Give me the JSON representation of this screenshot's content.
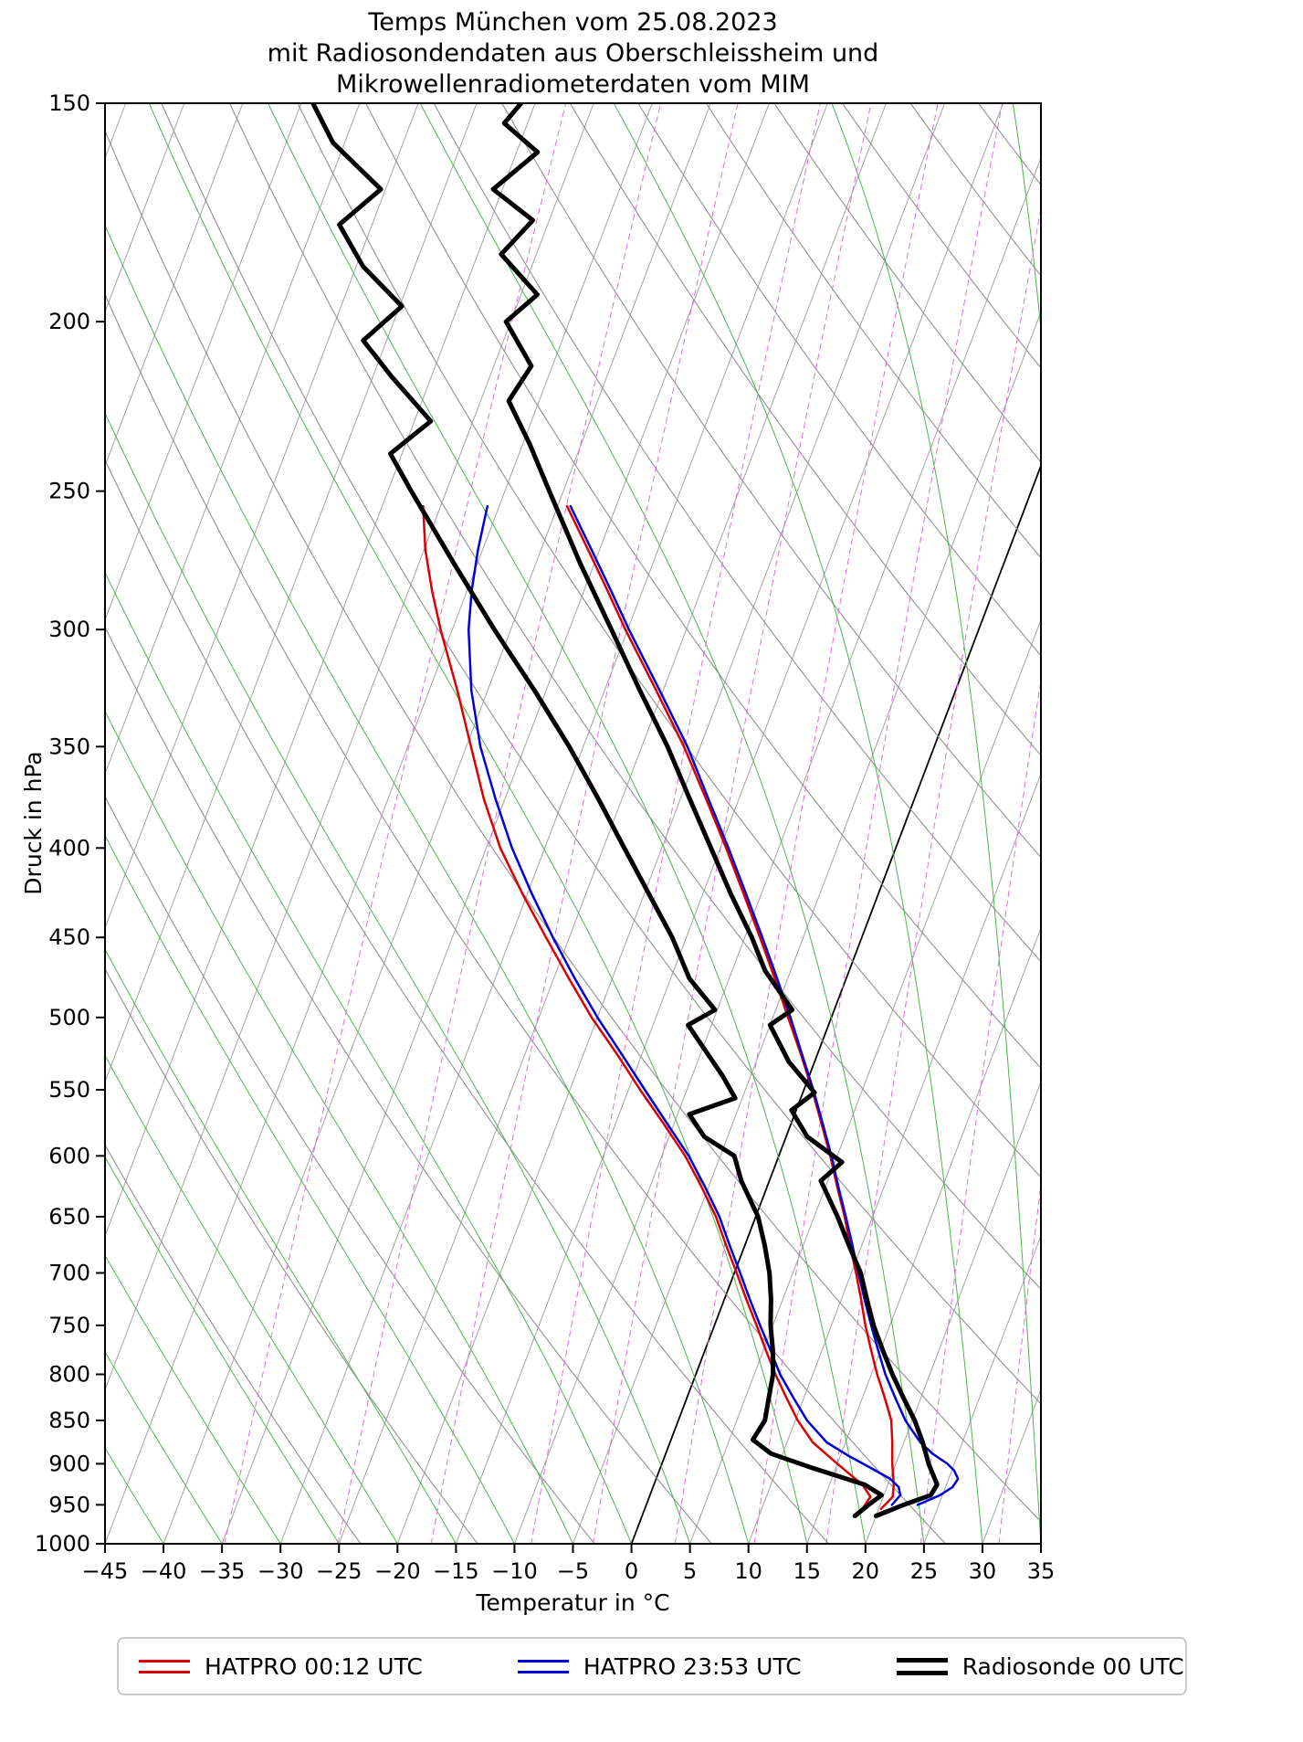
{
  "title": {
    "line1": "Temps München vom 25.08.2023",
    "line2": "mit Radiosondendaten aus Oberschleissheim und",
    "line3": "Mikrowellenradiometerdaten vom MIM"
  },
  "chart_data": {
    "type": "line",
    "variant": "skewT-logp",
    "xlabel": "Temperatur in °C",
    "ylabel": "Druck in hPa",
    "x_range": [
      -45,
      35
    ],
    "p_range": [
      150,
      1000
    ],
    "skew": 0.38,
    "x_ticks": [
      -45,
      -40,
      -35,
      -30,
      -25,
      -20,
      -15,
      -10,
      -5,
      0,
      5,
      10,
      15,
      20,
      25,
      30,
      35
    ],
    "x_tick_labels": [
      "−45",
      "−40",
      "−35",
      "−30",
      "−25",
      "−20",
      "−15",
      "−10",
      "−5",
      "0",
      "5",
      "10",
      "15",
      "20",
      "25",
      "30",
      "35"
    ],
    "y_ticks": [
      150,
      200,
      250,
      300,
      350,
      400,
      450,
      500,
      550,
      600,
      650,
      700,
      750,
      800,
      850,
      900,
      950,
      1000
    ],
    "grid": {
      "isotherms": {
        "min": -110,
        "max": 40,
        "step": 5,
        "color": "#a3a3a3",
        "zero_highlight": 0,
        "zero_color": "#000000"
      },
      "dry_adiabats": {
        "theta_min": 250,
        "theta_max": 450,
        "step": 10,
        "color": "#8f8f8f"
      },
      "moist_adiabats": {
        "t_min": -40,
        "t_max": 40,
        "step": 5,
        "color": "#4bb54b"
      },
      "mixing_ratio": {
        "values": [
          0.2,
          0.5,
          1,
          2,
          3,
          5,
          8,
          12,
          20,
          30
        ],
        "color": "#e36ae3"
      }
    },
    "series": [
      {
        "name": "HATPRO 00:12 UTC",
        "color": "#dd0000",
        "width": 2.5,
        "temperature_pT": [
          [
            955,
            20.2
          ],
          [
            940,
            20.8
          ],
          [
            925,
            20.5
          ],
          [
            900,
            19.7
          ],
          [
            875,
            19.0
          ],
          [
            850,
            18.2
          ],
          [
            825,
            16.9
          ],
          [
            800,
            15.5
          ],
          [
            775,
            14.2
          ],
          [
            750,
            12.9
          ],
          [
            725,
            11.7
          ],
          [
            700,
            10.4
          ],
          [
            675,
            9.0
          ],
          [
            650,
            7.6
          ],
          [
            625,
            6.0
          ],
          [
            600,
            4.4
          ],
          [
            575,
            2.6
          ],
          [
            550,
            0.7
          ],
          [
            525,
            -1.4
          ],
          [
            500,
            -3.7
          ],
          [
            475,
            -6.1
          ],
          [
            450,
            -8.7
          ],
          [
            425,
            -11.5
          ],
          [
            400,
            -14.5
          ],
          [
            375,
            -17.8
          ],
          [
            350,
            -21.4
          ],
          [
            325,
            -25.6
          ],
          [
            300,
            -30.2
          ],
          [
            285,
            -33.0
          ],
          [
            270,
            -36.0
          ],
          [
            255,
            -39.2
          ]
        ],
        "dewpoint_pT": [
          [
            955,
            18.6
          ],
          [
            940,
            18.9
          ],
          [
            925,
            17.8
          ],
          [
            900,
            15.0
          ],
          [
            875,
            12.2
          ],
          [
            850,
            10.2
          ],
          [
            825,
            8.5
          ],
          [
            800,
            6.8
          ],
          [
            775,
            5.2
          ],
          [
            750,
            3.6
          ],
          [
            725,
            1.9
          ],
          [
            700,
            0.2
          ],
          [
            675,
            -1.6
          ],
          [
            650,
            -3.4
          ],
          [
            625,
            -5.6
          ],
          [
            600,
            -8.0
          ],
          [
            575,
            -10.9
          ],
          [
            550,
            -14.0
          ],
          [
            525,
            -17.1
          ],
          [
            500,
            -20.5
          ],
          [
            475,
            -23.7
          ],
          [
            450,
            -27.0
          ],
          [
            425,
            -30.4
          ],
          [
            400,
            -33.8
          ],
          [
            375,
            -36.8
          ],
          [
            350,
            -39.6
          ],
          [
            325,
            -42.6
          ],
          [
            300,
            -46.0
          ],
          [
            285,
            -48.0
          ],
          [
            270,
            -49.9
          ],
          [
            255,
            -51.5
          ]
        ]
      },
      {
        "name": "HATPRO 23:53 UTC",
        "color": "#0000dd",
        "width": 2.5,
        "temperature_pT": [
          [
            950,
            23.2
          ],
          [
            938,
            24.8
          ],
          [
            928,
            25.6
          ],
          [
            918,
            25.8
          ],
          [
            908,
            25.2
          ],
          [
            900,
            24.4
          ],
          [
            888,
            22.8
          ],
          [
            875,
            21.4
          ],
          [
            850,
            19.4
          ],
          [
            825,
            17.8
          ],
          [
            800,
            16.2
          ],
          [
            775,
            14.8
          ],
          [
            750,
            13.4
          ],
          [
            725,
            12.0
          ],
          [
            700,
            10.6
          ],
          [
            675,
            9.2
          ],
          [
            650,
            7.7
          ],
          [
            625,
            6.1
          ],
          [
            600,
            4.5
          ],
          [
            575,
            2.7
          ],
          [
            550,
            0.8
          ],
          [
            525,
            -1.3
          ],
          [
            500,
            -3.5
          ],
          [
            475,
            -5.9
          ],
          [
            450,
            -8.5
          ],
          [
            425,
            -11.3
          ],
          [
            400,
            -14.3
          ],
          [
            375,
            -17.6
          ],
          [
            350,
            -21.1
          ],
          [
            325,
            -25.3
          ],
          [
            300,
            -29.9
          ],
          [
            285,
            -32.7
          ],
          [
            270,
            -35.7
          ],
          [
            255,
            -38.9
          ]
        ],
        "dewpoint_pT": [
          [
            950,
            21.0
          ],
          [
            938,
            21.4
          ],
          [
            928,
            21.0
          ],
          [
            918,
            20.0
          ],
          [
            905,
            18.0
          ],
          [
            890,
            15.6
          ],
          [
            875,
            13.4
          ],
          [
            850,
            11.0
          ],
          [
            825,
            9.1
          ],
          [
            800,
            7.2
          ],
          [
            775,
            5.6
          ],
          [
            750,
            3.9
          ],
          [
            725,
            2.2
          ],
          [
            700,
            0.5
          ],
          [
            675,
            -1.3
          ],
          [
            650,
            -3.1
          ],
          [
            625,
            -5.3
          ],
          [
            600,
            -7.7
          ],
          [
            575,
            -10.6
          ],
          [
            550,
            -13.6
          ],
          [
            525,
            -16.7
          ],
          [
            500,
            -20.0
          ],
          [
            475,
            -23.2
          ],
          [
            450,
            -26.4
          ],
          [
            425,
            -29.6
          ],
          [
            400,
            -32.8
          ],
          [
            375,
            -35.8
          ],
          [
            350,
            -38.8
          ],
          [
            325,
            -41.4
          ],
          [
            300,
            -43.6
          ],
          [
            285,
            -44.6
          ],
          [
            270,
            -45.4
          ],
          [
            255,
            -46.0
          ]
        ]
      },
      {
        "name": "Radiosonde 00 UTC",
        "color": "#000000",
        "width": 5,
        "temperature_pT": [
          [
            964,
            20.0
          ],
          [
            950,
            22.0
          ],
          [
            938,
            24.0
          ],
          [
            925,
            24.2
          ],
          [
            900,
            22.8
          ],
          [
            875,
            21.6
          ],
          [
            850,
            20.2
          ],
          [
            825,
            18.5
          ],
          [
            800,
            16.8
          ],
          [
            775,
            15.2
          ],
          [
            750,
            13.6
          ],
          [
            725,
            12.2
          ],
          [
            700,
            10.8
          ],
          [
            675,
            8.9
          ],
          [
            650,
            7.0
          ],
          [
            620,
            4.4
          ],
          [
            605,
            5.6
          ],
          [
            585,
            1.8
          ],
          [
            565,
            -0.4
          ],
          [
            552,
            1.0
          ],
          [
            530,
            -2.2
          ],
          [
            505,
            -5.0
          ],
          [
            495,
            -3.6
          ],
          [
            470,
            -7.2
          ],
          [
            450,
            -9.4
          ],
          [
            425,
            -12.6
          ],
          [
            400,
            -15.8
          ],
          [
            375,
            -19.2
          ],
          [
            350,
            -22.8
          ],
          [
            325,
            -27.0
          ],
          [
            300,
            -31.4
          ],
          [
            275,
            -36.2
          ],
          [
            250,
            -41.2
          ],
          [
            235,
            -44.4
          ],
          [
            222,
            -47.6
          ],
          [
            212,
            -46.8
          ],
          [
            200,
            -50.4
          ],
          [
            193,
            -48.6
          ],
          [
            183,
            -53.0
          ],
          [
            175,
            -51.4
          ],
          [
            168,
            -55.8
          ],
          [
            160,
            -53.2
          ],
          [
            154,
            -57.0
          ],
          [
            150,
            -56.2
          ]
        ],
        "dewpoint_pT": [
          [
            964,
            18.2
          ],
          [
            950,
            19.0
          ],
          [
            938,
            19.8
          ],
          [
            925,
            18.0
          ],
          [
            905,
            13.0
          ],
          [
            888,
            9.0
          ],
          [
            872,
            7.0
          ],
          [
            850,
            7.4
          ],
          [
            825,
            7.0
          ],
          [
            800,
            6.6
          ],
          [
            775,
            5.8
          ],
          [
            750,
            4.8
          ],
          [
            725,
            4.0
          ],
          [
            700,
            3.0
          ],
          [
            675,
            1.7
          ],
          [
            650,
            0.2
          ],
          [
            620,
            -2.4
          ],
          [
            600,
            -3.8
          ],
          [
            585,
            -7.0
          ],
          [
            568,
            -9.0
          ],
          [
            556,
            -5.6
          ],
          [
            540,
            -7.4
          ],
          [
            520,
            -10.0
          ],
          [
            505,
            -12.0
          ],
          [
            495,
            -10.2
          ],
          [
            475,
            -13.4
          ],
          [
            450,
            -16.2
          ],
          [
            425,
            -19.6
          ],
          [
            400,
            -23.2
          ],
          [
            375,
            -27.0
          ],
          [
            350,
            -31.2
          ],
          [
            325,
            -36.0
          ],
          [
            300,
            -41.4
          ],
          [
            275,
            -47.0
          ],
          [
            250,
            -53.0
          ],
          [
            238,
            -56.0
          ],
          [
            228,
            -53.6
          ],
          [
            215,
            -58.4
          ],
          [
            205,
            -62.0
          ],
          [
            196,
            -59.8
          ],
          [
            186,
            -64.4
          ],
          [
            176,
            -67.8
          ],
          [
            168,
            -65.4
          ],
          [
            158,
            -71.0
          ],
          [
            150,
            -74.0
          ]
        ]
      }
    ]
  }
}
